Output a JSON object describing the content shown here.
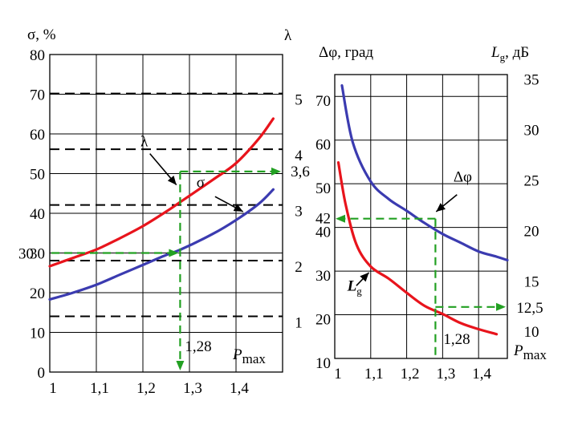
{
  "colors": {
    "red": "#e8141c",
    "blue": "#3b3bb0",
    "green": "#22a022",
    "black": "#000000"
  },
  "chart_data": [
    {
      "type": "line",
      "xlabel": "P",
      "xlabel_sub": "max",
      "x_ticks": [
        "1",
        "1,1",
        "1,2",
        "1,3",
        "1,4"
      ],
      "xlim": [
        1,
        1.5
      ],
      "y_left_label": "σ, %",
      "y_left_ticks": [
        "0",
        "10",
        "20",
        "30",
        "40",
        "50",
        "60",
        "70",
        "80"
      ],
      "y_left_lim": [
        0,
        80
      ],
      "y_right_label": "λ",
      "y_right_ticks": [
        "1",
        "2",
        "3",
        "4",
        "5"
      ],
      "y_right_lim": [
        0,
        5.7
      ],
      "dashed_levels_right": [
        1,
        2,
        3,
        4,
        5
      ],
      "series": [
        {
          "name": "λ",
          "axis": "right",
          "color": "red",
          "x": [
            1,
            1.05,
            1.1,
            1.15,
            1.2,
            1.25,
            1.28,
            1.35,
            1.4,
            1.45,
            1.48
          ],
          "y": [
            1.9,
            2.05,
            2.2,
            2.4,
            2.62,
            2.88,
            3.05,
            3.45,
            3.75,
            4.2,
            4.55
          ]
        },
        {
          "name": "σ",
          "axis": "left",
          "color": "blue",
          "x": [
            1,
            1.05,
            1.1,
            1.15,
            1.2,
            1.25,
            1.28,
            1.35,
            1.4,
            1.45,
            1.48
          ],
          "y": [
            18.3,
            20,
            22,
            24.5,
            27,
            29.5,
            30.8,
            34.8,
            38.3,
            42.5,
            46
          ]
        }
      ],
      "annotations": {
        "label_lambda": "λ",
        "label_sigma": "σ",
        "x_marker": 1.28,
        "x_marker_text": "1,28",
        "left_marker": 30,
        "left_marker_text": "30",
        "right_marker": 3.6,
        "right_marker_text": "3,6"
      }
    },
    {
      "type": "line",
      "xlabel": "P",
      "xlabel_sub": "max",
      "x_ticks": [
        "1",
        "1,1",
        "1,2",
        "1,3",
        "1,4"
      ],
      "xlim": [
        1,
        1.48
      ],
      "y_left_label": "Δφ, град",
      "y_left_ticks": [
        "10",
        "20",
        "30",
        "40",
        "50",
        "60",
        "70"
      ],
      "y_left_lim": [
        10,
        75
      ],
      "y_right_label": "L",
      "y_right_label_sub": "g",
      "y_right_label_tail": ", дБ",
      "y_right_ticks": [
        "10",
        "15",
        "20",
        "25",
        "30",
        "35"
      ],
      "y_right_lim": [
        7.4,
        35.5
      ],
      "series": [
        {
          "name": "Δφ",
          "axis": "left",
          "color": "blue",
          "x": [
            1.02,
            1.05,
            1.1,
            1.15,
            1.2,
            1.25,
            1.3,
            1.35,
            1.4,
            1.45,
            1.48
          ],
          "y": [
            72.5,
            59.5,
            50.5,
            46.5,
            43.8,
            41,
            38.5,
            36.5,
            34.5,
            33.3,
            32.5
          ]
        },
        {
          "name": "L",
          "axis": "right",
          "color": "red",
          "x": [
            1.01,
            1.03,
            1.06,
            1.1,
            1.15,
            1.2,
            1.25,
            1.3,
            1.35,
            1.4,
            1.45
          ],
          "y": [
            26.8,
            22.7,
            18.7,
            16.5,
            15.3,
            13.9,
            12.6,
            11.8,
            10.9,
            10.3,
            9.8
          ]
        }
      ],
      "annotations": {
        "label_dphi": "Δφ",
        "label_lg": "L",
        "label_lg_sub": "g",
        "x_marker": 1.28,
        "x_marker_text": "1,28",
        "left_marker": 42,
        "left_marker_text": "42",
        "right_marker": 12.5,
        "right_marker_text": "12,5"
      }
    }
  ]
}
